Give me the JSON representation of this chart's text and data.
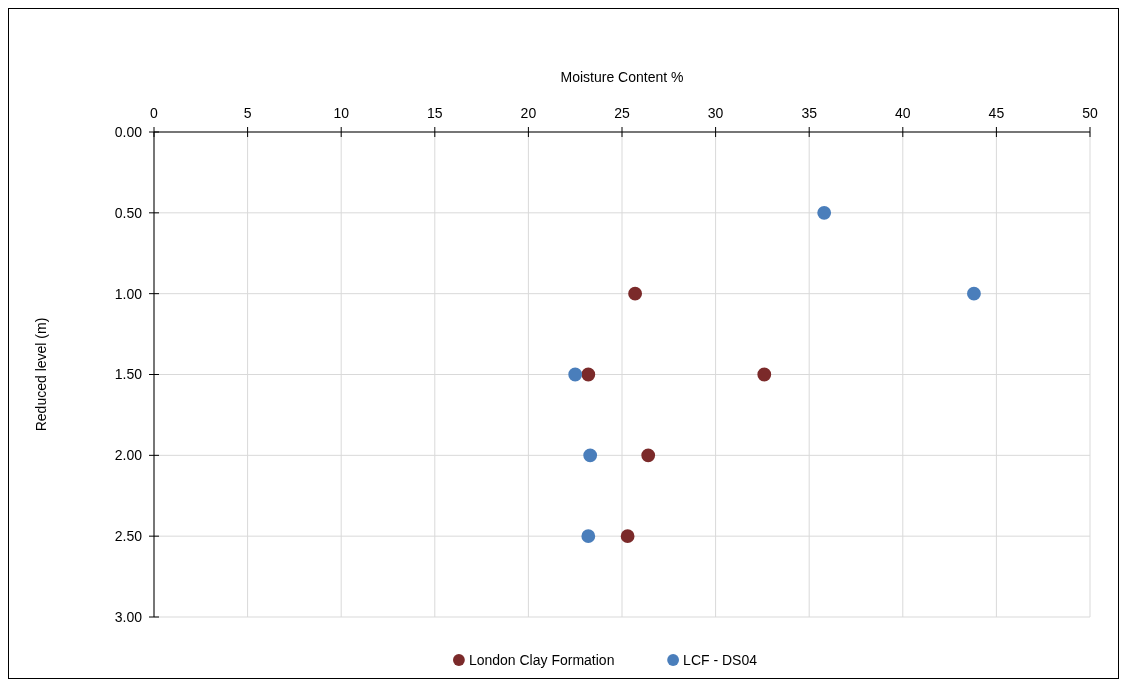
{
  "chart_data": {
    "type": "scatter",
    "xlabel": "Moisture Content %",
    "ylabel": "Reduced level (m)",
    "xlim": [
      0,
      50
    ],
    "xticks": [
      0,
      5,
      10,
      15,
      20,
      25,
      30,
      35,
      40,
      45,
      50
    ],
    "ylim": [
      3,
      0
    ],
    "yticks": [
      {
        "value": 0,
        "label": "0.00"
      },
      {
        "value": 0.5,
        "label": "0.50"
      },
      {
        "value": 1,
        "label": "1.00"
      },
      {
        "value": 1.5,
        "label": "1.50"
      },
      {
        "value": 2,
        "label": "2.00"
      },
      {
        "value": 2.5,
        "label": "2.50"
      },
      {
        "value": 3,
        "label": "3.00"
      }
    ],
    "grid": true,
    "legend": "bottom",
    "marker": "circle",
    "series": [
      {
        "name": "London Clay Formation",
        "color": "#7b2a2a",
        "x": [
          25.7,
          23.2,
          32.6,
          26.4,
          25.3
        ],
        "values": [
          1,
          1.5,
          1.5,
          2,
          2.5
        ]
      },
      {
        "name": "LCF - DS04",
        "color": "#4a7ebb",
        "x": [
          35.8,
          43.8,
          22.5,
          23.3,
          23.2
        ],
        "values": [
          0.5,
          1,
          1.5,
          2,
          2.5
        ]
      }
    ]
  }
}
